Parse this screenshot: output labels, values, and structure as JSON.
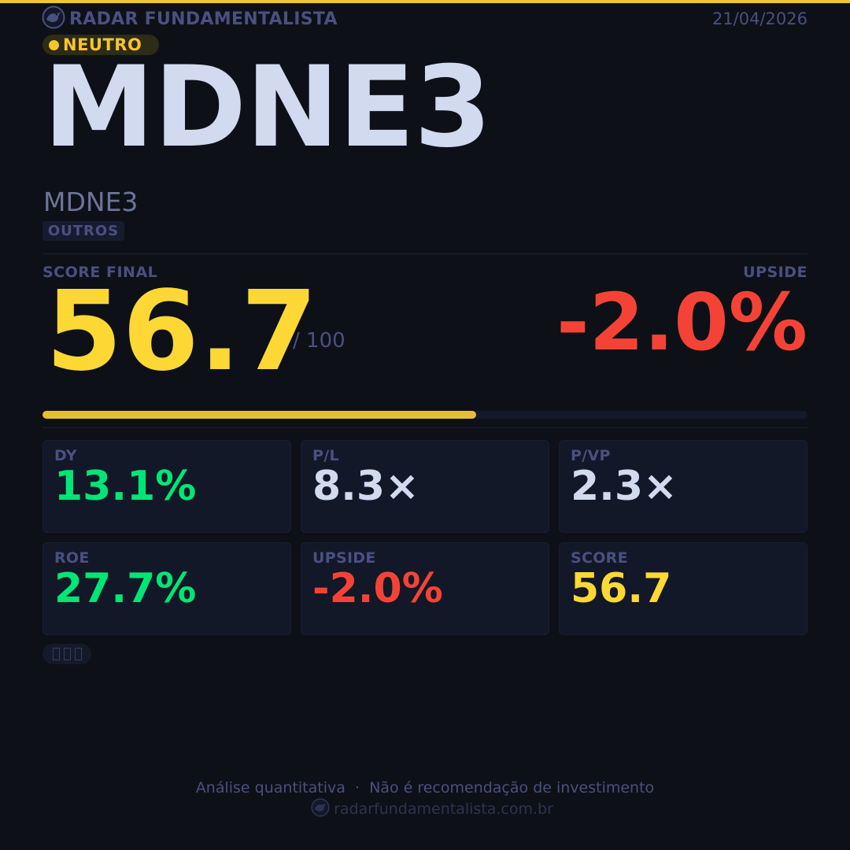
{
  "colors": {
    "accent": "#f5c530",
    "score": "#fdd835",
    "negative": "#f44336",
    "positive": "#00e676",
    "neutral_value": "#d2daf0",
    "background": "#0d1017"
  },
  "header": {
    "brand": "RADAR FUNDAMENTALISTA",
    "brand_icon": "radar-logo-icon",
    "date": "21/04/2026"
  },
  "status": {
    "label": "NEUTRO"
  },
  "asset": {
    "ticker": "MDNE3",
    "name": "MDNE3",
    "sector": "OUTROS"
  },
  "score": {
    "label": "SCORE FINAL",
    "value": "56.7",
    "denominator": "/ 100",
    "progress_fraction": 0.567
  },
  "upside": {
    "label": "UPSIDE",
    "value": "-2.0%"
  },
  "metrics": [
    {
      "label": "DY",
      "value": "13.1%",
      "color": "#00e676"
    },
    {
      "label": "P/L",
      "value": "8.3×",
      "color": "#d2daf0"
    },
    {
      "label": "P/VP",
      "value": "2.3×",
      "color": "#d2daf0"
    },
    {
      "label": "ROE",
      "value": "27.7%",
      "color": "#00e676"
    },
    {
      "label": "UPSIDE",
      "value": "-2.0%",
      "color": "#f44336"
    },
    {
      "label": "SCORE",
      "value": "56.7",
      "color": "#fdd835"
    }
  ],
  "footer": {
    "disclaimer": "Análise quantitativa  ·  Não é recomendação de investimento",
    "url": "radarfundamentalista.com.br"
  }
}
